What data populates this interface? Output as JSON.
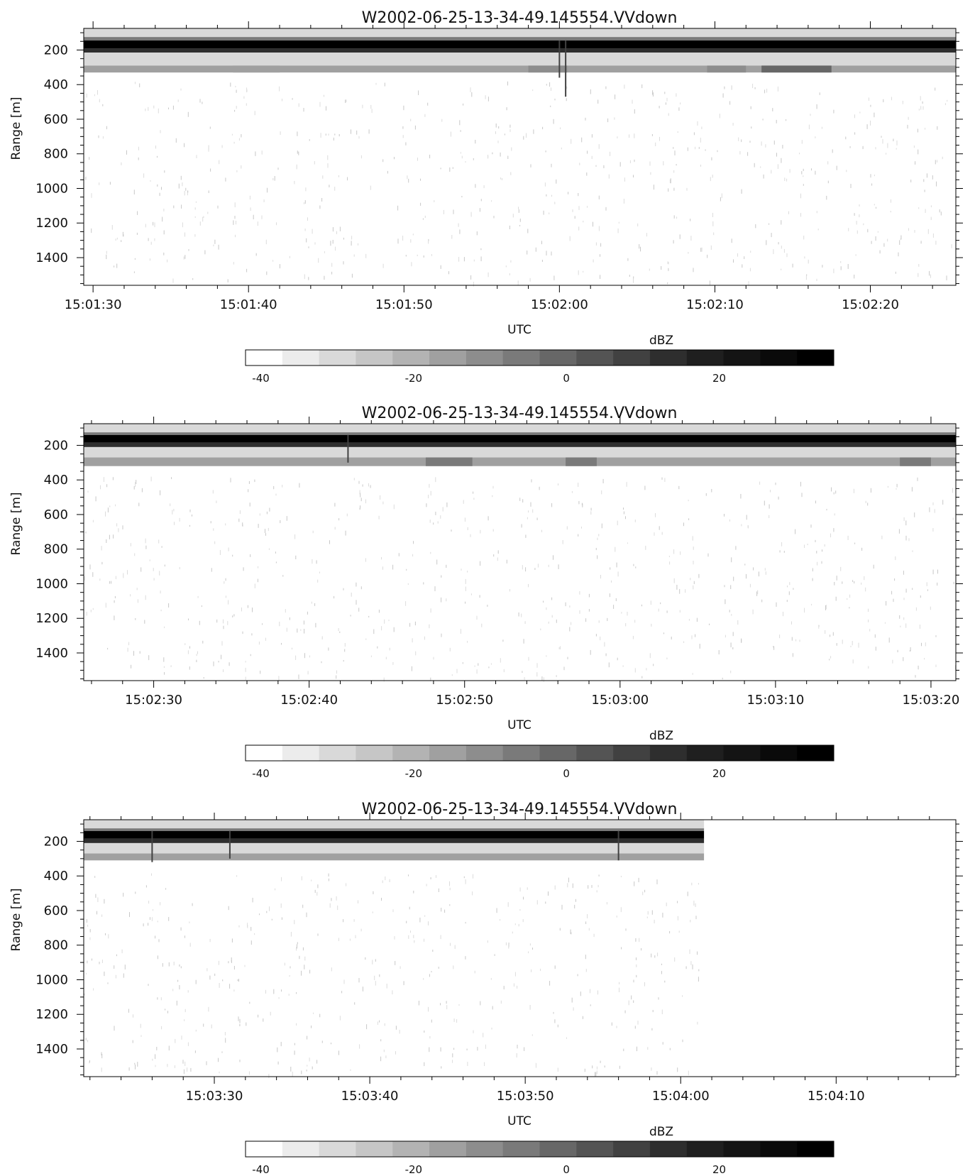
{
  "chart_data": [
    {
      "type": "heatmap",
      "title": "W2002-06-25-13-34-49.145554.VVdown",
      "xlabel": "UTC",
      "ylabel": "Range [m]",
      "x_tick_labels": [
        "15:01:30",
        "15:01:40",
        "15:01:50",
        "15:02:00",
        "15:02:10",
        "15:02:20"
      ],
      "x_ticks_seconds": [
        0,
        10,
        20,
        30,
        40,
        50
      ],
      "xlim_seconds": [
        -0.6,
        55.5
      ],
      "y_tick_labels": [
        "200",
        "400",
        "600",
        "800",
        "1000",
        "1200",
        "1400"
      ],
      "y_ticks": [
        200,
        400,
        600,
        800,
        1000,
        1200,
        1400
      ],
      "ylim": [
        1560,
        75
      ],
      "y_reversed": true,
      "data_extent_seconds": [
        -0.6,
        55.5
      ],
      "features": {
        "strong_band_range": [
          145,
          190
        ],
        "secondary_band_range": [
          290,
          330
        ],
        "secondary_patches": [
          {
            "start": 43.0,
            "end": 47.5,
            "dbz": -2
          },
          {
            "start": 39.5,
            "end": 42.0,
            "dbz": -10
          },
          {
            "start": 28.0,
            "end": 30.5,
            "dbz": -10
          },
          {
            "start": 9.0,
            "end": 12.0,
            "dbz": -14
          }
        ],
        "spikes": [
          {
            "t": 30.4,
            "depth": 470
          },
          {
            "t": 30.0,
            "depth": 360
          }
        ]
      }
    },
    {
      "type": "heatmap",
      "title": "W2002-06-25-13-34-49.145554.VVdown",
      "xlabel": "UTC",
      "ylabel": "Range [m]",
      "x_tick_labels": [
        "15:02:30",
        "15:02:40",
        "15:02:50",
        "15:03:00",
        "15:03:10",
        "15:03:20"
      ],
      "x_ticks_seconds": [
        60,
        70,
        80,
        90,
        100,
        110
      ],
      "xlim_seconds": [
        55.5,
        111.6
      ],
      "y_tick_labels": [
        "200",
        "400",
        "600",
        "800",
        "1000",
        "1200",
        "1400"
      ],
      "y_ticks": [
        200,
        400,
        600,
        800,
        1000,
        1200,
        1400
      ],
      "ylim": [
        1560,
        75
      ],
      "y_reversed": true,
      "data_extent_seconds": [
        55.5,
        111.6
      ],
      "features": {
        "strong_band_range": [
          140,
          185
        ],
        "secondary_band_range": [
          270,
          320
        ],
        "secondary_patches": [
          {
            "start": 77.5,
            "end": 80.5,
            "dbz": -8
          },
          {
            "start": 86.5,
            "end": 88.5,
            "dbz": -8
          },
          {
            "start": 108.0,
            "end": 110.0,
            "dbz": -6
          }
        ],
        "spikes": [
          {
            "t": 72.5,
            "depth": 300
          }
        ]
      }
    },
    {
      "type": "heatmap",
      "title": "W2002-06-25-13-34-49.145554.VVdown",
      "xlabel": "UTC",
      "ylabel": "Range [m]",
      "x_tick_labels": [
        "15:03:30",
        "15:03:40",
        "15:03:50",
        "15:04:00",
        "15:04:10"
      ],
      "x_ticks_seconds": [
        120,
        130,
        140,
        150,
        160
      ],
      "xlim_seconds": [
        111.6,
        167.7
      ],
      "y_tick_labels": [
        "200",
        "400",
        "600",
        "800",
        "1000",
        "1200",
        "1400"
      ],
      "y_ticks": [
        200,
        400,
        600,
        800,
        1000,
        1200,
        1400
      ],
      "ylim": [
        1560,
        75
      ],
      "y_reversed": true,
      "data_extent_seconds": [
        111.6,
        151.5
      ],
      "features": {
        "strong_band_range": [
          140,
          185
        ],
        "secondary_band_range": [
          270,
          310
        ],
        "secondary_patches": [],
        "spikes": [
          {
            "t": 116.0,
            "depth": 320
          },
          {
            "t": 121.0,
            "depth": 300
          },
          {
            "t": 146.0,
            "depth": 310
          }
        ]
      }
    }
  ],
  "colorbar": {
    "label": "dBZ",
    "min": -42,
    "max": 35,
    "steps": 16,
    "tick_labels": [
      "-40",
      "-20",
      "0",
      "20"
    ],
    "ticks": [
      -40,
      -20,
      0,
      20
    ],
    "colors": [
      "#ffffff",
      "#ececec",
      "#d9d9d9",
      "#c6c6c6",
      "#b3b3b3",
      "#a0a0a0",
      "#8d8d8d",
      "#7a7a7a",
      "#676767",
      "#545454",
      "#414141",
      "#2e2e2e",
      "#1f1f1f",
      "#141414",
      "#0a0a0a",
      "#000000"
    ]
  }
}
